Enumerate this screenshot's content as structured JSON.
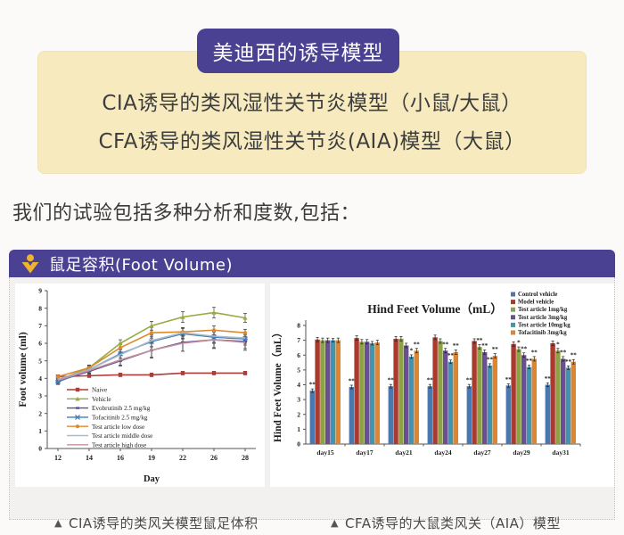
{
  "model_box": {
    "badge_label": "美迪西的诱导模型",
    "lines": [
      "CIA诱导的类风湿性关节炎模型（小鼠/大鼠）",
      "CFA诱导的类风湿性关节炎(AIA)模型（大鼠）"
    ]
  },
  "intro_text": "我们的试验包括多种分析和度数,包括：",
  "panel": {
    "title": "鼠足容积(Foot Volume)",
    "icon": "medicilon-person-icon",
    "captions": [
      {
        "marker": "▲",
        "text": "CIA诱导的类风关模型鼠足体积"
      },
      {
        "marker": "▲",
        "text": "CFA诱导的大鼠类风关（AIA）模型"
      }
    ]
  },
  "colors": {
    "accent_purple": "#4b4193",
    "cream_box": "#f6eabe",
    "panel_body": "#f3f1ef",
    "icon_yellow": "#f0b42c"
  },
  "chart_data": [
    {
      "type": "line",
      "title": "",
      "xlabel": "Day",
      "ylabel": "Foot volume (ml)",
      "x": [
        12,
        14,
        16,
        19,
        22,
        26,
        28
      ],
      "ylim": [
        0,
        9
      ],
      "yticks": [
        0,
        1,
        2,
        3,
        4,
        5,
        6,
        7,
        8,
        9
      ],
      "grid": false,
      "legend_position": "lower-left",
      "series": [
        {
          "name": "Naive",
          "color": "#ae3c39",
          "marker": "square",
          "values": [
            4.1,
            4.15,
            4.2,
            4.2,
            4.3,
            4.3,
            4.3
          ],
          "err": [
            0.1,
            0.1,
            0.1,
            0.1,
            0.1,
            0.1,
            0.1
          ]
        },
        {
          "name": "Vehicle",
          "color": "#94ac40",
          "marker": "triangle",
          "values": [
            3.9,
            4.6,
            6.0,
            7.0,
            7.5,
            7.75,
            7.45
          ],
          "err": [
            0.15,
            0.15,
            0.2,
            0.25,
            0.3,
            0.3,
            0.25
          ]
        },
        {
          "name": "Evobrutinib 2.5 mg/kg",
          "color": "#5d4d96",
          "marker": "dash",
          "values": [
            3.85,
            4.4,
            5.0,
            5.6,
            6.05,
            6.2,
            6.1
          ],
          "err": [
            0.15,
            0.2,
            0.3,
            0.45,
            0.5,
            0.45,
            0.4
          ]
        },
        {
          "name": "Tofacitinib 2.5 mg/kg",
          "color": "#3f7cba",
          "marker": "x",
          "values": [
            3.8,
            4.5,
            5.4,
            6.1,
            6.55,
            6.35,
            6.25
          ],
          "err": [
            0.15,
            0.2,
            0.25,
            0.3,
            0.3,
            0.35,
            0.35
          ]
        },
        {
          "name": "Test article low dose",
          "color": "#dd8a2e",
          "marker": "circle",
          "values": [
            4.1,
            4.6,
            5.75,
            6.6,
            6.65,
            6.75,
            6.6
          ],
          "err": [
            0.1,
            0.15,
            0.25,
            0.3,
            0.25,
            0.25,
            0.2
          ]
        },
        {
          "name": "Test article middle dose",
          "color": "#a9bac9",
          "marker": "none",
          "values": [
            3.95,
            4.5,
            5.35,
            6.15,
            6.6,
            6.4,
            6.3
          ],
          "err": [
            0.15,
            0.2,
            0.3,
            0.35,
            0.3,
            0.35,
            0.3
          ]
        },
        {
          "name": "Test article high dose",
          "color": "#c7919c",
          "marker": "none",
          "values": [
            3.9,
            4.45,
            5.05,
            5.6,
            6.0,
            6.2,
            6.05
          ],
          "err": [
            0.15,
            0.2,
            0.3,
            0.4,
            0.45,
            0.5,
            0.45
          ]
        }
      ]
    },
    {
      "type": "bar",
      "title": "Hind Feet Volume（mL）",
      "ylabel": "Hind Feet Volume（mL）",
      "categories": [
        "day15",
        "day17",
        "day21",
        "day24",
        "day27",
        "day29",
        "day31"
      ],
      "ylim": [
        0,
        8
      ],
      "yticks": [
        0,
        1,
        2,
        3,
        4,
        5,
        6,
        7,
        8
      ],
      "grid": false,
      "legend_position": "top-right",
      "series": [
        {
          "name": "Control vehicle",
          "color": "#4a77ad",
          "err": 0.12,
          "values": [
            3.6,
            3.85,
            3.9,
            3.9,
            3.9,
            3.95,
            4.0
          ],
          "sig": [
            "**",
            "**",
            "**",
            "**",
            "**",
            "**",
            "**"
          ]
        },
        {
          "name": "Model vehicle",
          "color": "#a93a2e",
          "err": 0.15,
          "values": [
            7.05,
            7.15,
            7.1,
            7.2,
            6.95,
            6.75,
            6.8
          ],
          "sig": [
            "",
            "",
            "",
            "",
            "",
            "",
            ""
          ]
        },
        {
          "name": "Test article 1mg/kg",
          "color": "#8ca244",
          "err": 0.15,
          "values": [
            7.0,
            6.9,
            7.1,
            6.95,
            6.55,
            6.4,
            6.3
          ],
          "sig": [
            "",
            "",
            "",
            "",
            "**",
            "*",
            "*"
          ]
        },
        {
          "name": "Test article 3mg/kg",
          "color": "#6b4f94",
          "err": 0.15,
          "values": [
            7.0,
            6.9,
            6.65,
            6.3,
            6.2,
            6.0,
            5.75
          ],
          "sig": [
            "",
            "",
            "",
            "**",
            "**",
            "**",
            "**"
          ]
        },
        {
          "name": "Test article 10mg/kg",
          "color": "#4194ad",
          "err": 0.12,
          "values": [
            7.0,
            6.8,
            5.9,
            5.55,
            5.3,
            5.2,
            5.15
          ],
          "sig": [
            "",
            "",
            "*",
            "**",
            "**",
            "**",
            "**"
          ]
        },
        {
          "name": "Tofacitinib 3mg/kg",
          "color": "#dd862f",
          "err": 0.15,
          "values": [
            7.0,
            6.85,
            6.3,
            6.2,
            5.95,
            5.75,
            5.55
          ],
          "sig": [
            "",
            "",
            "**",
            "**",
            "**",
            "**",
            "**"
          ]
        }
      ]
    }
  ]
}
